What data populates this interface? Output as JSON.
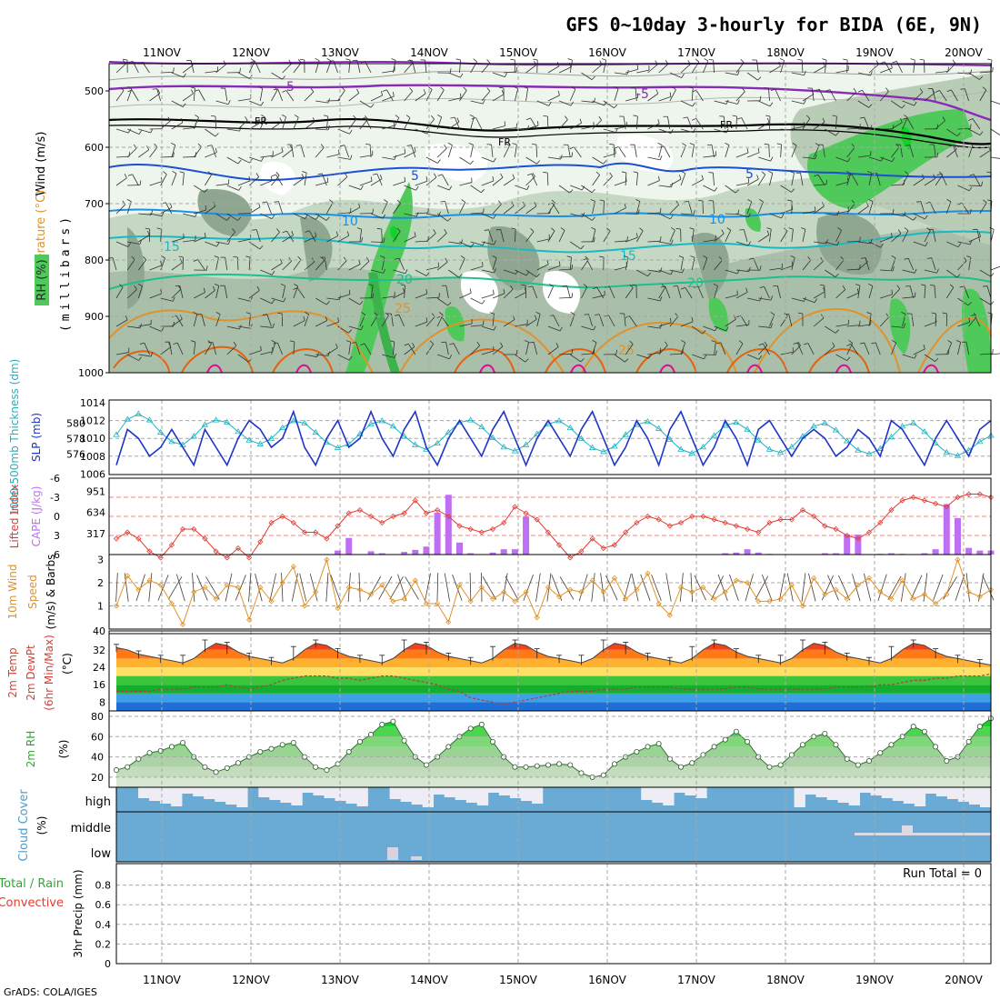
{
  "header": {
    "title": "GFS 0~10day 3-hourly for BIDA (6E, 9N)",
    "footer": "GrADS: COLA/IGES"
  },
  "dates": [
    "11NOV",
    "12NOV",
    "13NOV",
    "14NOV",
    "15NOV",
    "16NOV",
    "17NOV",
    "18NOV",
    "19NOV",
    "20NOV"
  ],
  "colors": {
    "rh_light": "#e6f1e2",
    "rh_mid": "#b8ccb6",
    "rh_dark": "#8fa791",
    "rh_green": "#4fc95a",
    "slp_line": "#1e35c6",
    "thickness_line": "#20b2c2",
    "lifted_index": "#e03c32",
    "cape_bar": "#bf70f2",
    "wind_speed": "#e0922a",
    "barb": "#333333",
    "cloud_blue": "#6aabd5",
    "cloud_pale": "#eeecf5"
  },
  "panels": {
    "profile": {
      "axis_label": "(millibars)",
      "legend": {
        "wind": "Wind (m/s)",
        "temperature": "Temperature (°C)",
        "rh": "RH (%)"
      },
      "pressure_ticks": [
        "500",
        "600",
        "700",
        "800",
        "900",
        "1000"
      ]
    },
    "thickness": {
      "label_thickness": "1000-500mb Thickness (dm)",
      "label_slp": "SLP (mb)",
      "left_ticks": [
        "580",
        "578",
        "576"
      ],
      "right_ticks": [
        "1014",
        "1012",
        "1010",
        "1008",
        "1006"
      ]
    },
    "instability": {
      "label_li": "Lifted Index",
      "label_cape": "CAPE (J/kg)",
      "li_ticks": [
        "-6",
        "-3",
        "0",
        "3",
        "6"
      ],
      "cape_ticks": [
        "951",
        "634",
        "317"
      ]
    },
    "wind10": {
      "label_main": "10m Wind",
      "label_speed": "Speed",
      "label_barbs": "(m/s) & Barbs",
      "ticks": [
        "3",
        "2",
        "1"
      ]
    },
    "temp2m": {
      "label_1": "2m Temp",
      "label_2": "2m DewPt",
      "label_3": "(6hr Min/Max)",
      "unit": "(°C)",
      "ticks": [
        "32",
        "24",
        "16",
        "8"
      ],
      "top_tick": "40"
    },
    "rh2m": {
      "label": "2m RH",
      "unit": "(%)",
      "ticks": [
        "80",
        "60",
        "40",
        "20"
      ]
    },
    "cloud": {
      "label": "Cloud Cover",
      "unit": "(%)",
      "levels": [
        "high",
        "middle",
        "low"
      ]
    },
    "precip": {
      "label_total": "Total / Rain",
      "label_conv": "Convective",
      "axis_label": "3hr Precip (mm)",
      "run_total": "Run Total = 0",
      "ticks": [
        "0.8",
        "0.6",
        "0.4",
        "0.2",
        "0"
      ]
    }
  },
  "chart_data": [
    {
      "id": "pressure_profile",
      "type": "heatmap",
      "title": "GFS 0~10day 3-hourly for BIDA (6E, 9N)",
      "ylabel": "(millibars)",
      "ylim": [
        1000,
        450
      ],
      "contours": [
        {
          "field": "temperature",
          "level": -5,
          "pressure_mb": 495
        },
        {
          "field": "temperature",
          "level": "FR",
          "pressure_mb": 575
        },
        {
          "field": "temperature",
          "level": 5,
          "pressure_mb": 650
        },
        {
          "field": "temperature",
          "level": 10,
          "pressure_mb": 710
        },
        {
          "field": "temperature",
          "level": 15,
          "pressure_mb": 770
        },
        {
          "field": "temperature",
          "level": 20,
          "pressure_mb": 830
        },
        {
          "field": "temperature",
          "level": 25,
          "pressure_mb": 890
        }
      ],
      "contour_labels": [
        "-5",
        "FR",
        "5",
        "10",
        "15",
        "20",
        "25"
      ]
    },
    {
      "id": "slp_thickness",
      "type": "line",
      "series": [
        {
          "name": "SLP (mb)",
          "axis": "right",
          "values": [
            1007,
            1011,
            1010,
            1008,
            1009,
            1011,
            1009,
            1007,
            1011,
            1009,
            1007,
            1010,
            1012,
            1011,
            1009,
            1010,
            1013,
            1009,
            1007,
            1010,
            1012,
            1009,
            1010,
            1013,
            1010,
            1008,
            1011,
            1013,
            1009,
            1007,
            1010,
            1012,
            1010,
            1008,
            1011,
            1013,
            1010,
            1007,
            1010,
            1012,
            1010,
            1008,
            1011,
            1013,
            1010,
            1007,
            1009,
            1012,
            1010,
            1007,
            1011,
            1013,
            1010,
            1007,
            1009,
            1012,
            1010,
            1007,
            1011,
            1012,
            1010,
            1008,
            1010,
            1011,
            1010,
            1008,
            1009,
            1011,
            1010,
            1008,
            1012,
            1011,
            1009,
            1007,
            1010,
            1012,
            1010,
            1008,
            1011,
            1012
          ]
        },
        {
          "name": "1000-500mb Thickness (dm)",
          "axis": "left",
          "values": [
            578.5,
            580.5,
            581.2,
            580.4,
            578.8,
            577.6,
            577.2,
            578.3,
            579.8,
            580.4,
            580.1,
            578.9,
            577.8,
            577.3,
            578.0,
            579.4,
            580.3,
            580.0,
            578.8,
            577.5,
            576.8,
            577.3,
            578.6,
            579.9,
            580.3,
            579.6,
            578.3,
            577.2,
            576.6,
            577.4,
            578.8,
            580.1,
            580.4,
            579.5,
            578.1,
            576.9,
            576.4,
            577.2,
            578.6,
            579.9,
            580.3,
            579.4,
            578.0,
            576.8,
            576.3,
            577.0,
            578.5,
            579.8,
            580.2,
            579.3,
            577.9,
            576.6,
            576.1,
            576.9,
            578.4,
            579.7,
            580.1,
            579.2,
            577.8,
            576.6,
            576.2,
            576.9,
            578.3,
            579.6,
            580.0,
            579.1,
            577.7,
            576.5,
            576.0,
            576.7,
            578.2,
            579.6,
            580.0,
            578.9,
            577.4,
            576.2,
            575.8,
            576.5,
            577.6,
            578.4
          ]
        }
      ]
    },
    {
      "id": "instability",
      "type": "bar",
      "series": [
        {
          "name": "CAPE (J/kg)",
          "values": [
            0,
            0,
            0,
            0,
            0,
            0,
            0,
            0,
            0,
            0,
            0,
            0,
            0,
            0,
            0,
            0,
            0,
            0,
            0,
            0,
            60,
            250,
            0,
            50,
            20,
            0,
            40,
            70,
            120,
            630,
            900,
            180,
            20,
            0,
            30,
            80,
            80,
            570,
            0,
            0,
            0,
            0,
            0,
            0,
            0,
            0,
            0,
            0,
            0,
            0,
            0,
            0,
            0,
            0,
            0,
            20,
            30,
            80,
            30,
            10,
            0,
            0,
            0,
            0,
            20,
            20,
            300,
            300,
            0,
            10,
            20,
            10,
            0,
            20,
            80,
            760,
            550,
            100,
            60,
            60
          ]
        },
        {
          "name": "Lifted Index",
          "values": [
            3.5,
            2.5,
            3.5,
            5.5,
            6.5,
            4.5,
            2,
            2,
            3.5,
            5.5,
            6.5,
            5,
            6.5,
            4,
            1,
            0,
            1,
            2.5,
            2.5,
            3.5,
            1.5,
            -0.5,
            -1,
            0,
            1,
            0,
            -0.5,
            -2.5,
            -0.5,
            -1,
            0,
            1.5,
            2,
            2.5,
            2,
            1,
            -1.5,
            -0.5,
            0.5,
            2.5,
            4.5,
            6.5,
            5.5,
            3.5,
            5,
            4.5,
            2.5,
            1,
            0,
            0.5,
            1.5,
            1,
            0,
            0,
            0.5,
            1,
            1.5,
            2,
            2.5,
            1,
            0.5,
            0.5,
            -1,
            0,
            1.5,
            2,
            3,
            3.5,
            2.5,
            1,
            -1,
            -2.5,
            -3,
            -2.5,
            -2,
            -1.5,
            -3,
            -3.5,
            -3.5,
            -3
          ]
        }
      ]
    },
    {
      "id": "wind10m",
      "type": "line",
      "ylabel": "(m/s)",
      "ylim": [
        0,
        3
      ],
      "series": [
        {
          "name": "Speed",
          "values": [
            1.0,
            2.3,
            1.7,
            2.1,
            1.9,
            1.1,
            0.2,
            1.6,
            1.8,
            1.3,
            1.9,
            1.8,
            0.4,
            1.8,
            1.2,
            2.0,
            2.7,
            1.0,
            1.6,
            3.0,
            0.9,
            1.8,
            1.7,
            1.5,
            1.9,
            1.2,
            1.3,
            2.1,
            1.1,
            1.1,
            0.3,
            1.9,
            1.2,
            1.8,
            1.3,
            1.6,
            1.2,
            1.6,
            0.5,
            1.8,
            1.4,
            1.7,
            1.6,
            2.1,
            1.6,
            2.2,
            1.3,
            1.7,
            2.4,
            1.1,
            0.6,
            1.8,
            1.6,
            1.8,
            1.3,
            1.6,
            2.1,
            2.0,
            1.2,
            1.2,
            1.3,
            1.9,
            1.0,
            2.2,
            1.5,
            1.7,
            1.3,
            1.9,
            2.2,
            1.6,
            1.3,
            2.1,
            1.3,
            1.5,
            1.1,
            1.5,
            3.0,
            1.6,
            1.4,
            1.7
          ]
        }
      ]
    },
    {
      "id": "temp2m",
      "type": "area",
      "ylabel": "(°C)",
      "ylim": [
        4,
        40
      ],
      "series": [
        {
          "name": "2m Temp",
          "values": [
            33,
            32,
            30,
            29,
            28,
            27,
            26,
            28,
            32,
            35,
            34,
            31,
            29,
            28,
            27,
            26,
            28,
            32,
            35,
            34,
            31,
            29,
            28,
            27,
            26,
            28,
            32,
            35,
            34,
            31,
            29,
            28,
            27,
            26,
            28,
            32,
            35,
            34,
            31,
            29,
            28,
            27,
            26,
            28,
            32,
            35,
            34,
            31,
            29,
            28,
            27,
            26,
            28,
            32,
            35,
            34,
            31,
            29,
            28,
            27,
            26,
            28,
            32,
            35,
            34,
            31,
            29,
            28,
            27,
            26,
            28,
            32,
            35,
            34,
            31,
            29,
            28,
            27,
            26,
            25
          ]
        },
        {
          "name": "2m DewPt",
          "values": [
            13,
            13,
            13,
            13,
            14,
            14,
            14,
            15,
            15,
            15,
            16,
            15,
            14,
            15,
            16,
            18,
            19,
            20,
            20,
            20,
            19,
            19,
            18,
            19,
            20,
            20,
            19,
            18,
            17,
            16,
            14,
            13,
            10,
            9,
            8,
            7,
            8,
            9,
            10,
            11,
            12,
            13,
            13,
            13,
            14,
            14,
            14,
            15,
            15,
            15,
            15,
            14,
            14,
            14,
            14,
            14,
            15,
            15,
            14,
            14,
            14,
            14,
            14,
            14,
            14,
            15,
            15,
            15,
            15,
            16,
            16,
            17,
            18,
            18,
            19,
            19,
            20,
            20,
            20,
            21
          ]
        }
      ]
    },
    {
      "id": "rh2m",
      "type": "area",
      "ylabel": "(%)",
      "ylim": [
        10,
        80
      ],
      "series": [
        {
          "name": "2m RH",
          "values": [
            27,
            30,
            38,
            44,
            46,
            50,
            54,
            40,
            30,
            25,
            29,
            34,
            40,
            45,
            48,
            52,
            54,
            40,
            30,
            27,
            33,
            45,
            55,
            62,
            72,
            75,
            56,
            40,
            32,
            40,
            50,
            60,
            68,
            72,
            55,
            40,
            30,
            30,
            31,
            32,
            33,
            32,
            24,
            20,
            22,
            33,
            40,
            45,
            50,
            53,
            38,
            30,
            34,
            42,
            50,
            57,
            65,
            55,
            40,
            30,
            32,
            42,
            52,
            60,
            63,
            52,
            38,
            32,
            36,
            44,
            52,
            60,
            70,
            65,
            50,
            36,
            40,
            55,
            70,
            78
          ]
        }
      ]
    },
    {
      "id": "cloud_cover",
      "type": "heatmap",
      "categories": [
        "high",
        "middle",
        "low"
      ]
    },
    {
      "id": "precip",
      "type": "bar",
      "ylabel": "3hr Precip (mm)",
      "ylim": [
        0,
        1
      ],
      "series": [
        {
          "name": "Total / Rain",
          "values": [
            0,
            0,
            0,
            0,
            0,
            0,
            0,
            0,
            0,
            0
          ]
        },
        {
          "name": "Convective",
          "values": [
            0,
            0,
            0,
            0,
            0,
            0,
            0,
            0,
            0,
            0
          ]
        }
      ],
      "annotations": [
        "Run Total = 0"
      ]
    }
  ]
}
